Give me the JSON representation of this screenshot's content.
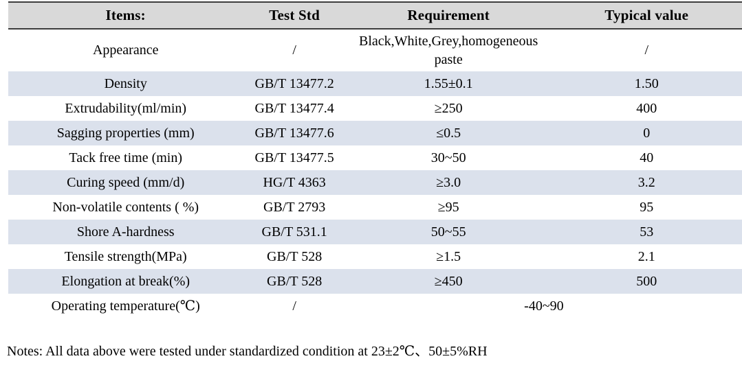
{
  "table": {
    "columns": [
      "Items:",
      "Test Std",
      "Requirement",
      "Typical value"
    ],
    "rows": [
      {
        "item": "Appearance",
        "test_std": "/",
        "requirement": "Black,White,Grey,homogeneous paste",
        "typical": "/"
      },
      {
        "item": "Density",
        "test_std": "GB/T 13477.2",
        "requirement": "1.55±0.1",
        "typical": "1.50"
      },
      {
        "item": "Extrudability(ml/min)",
        "test_std": "GB/T 13477.4",
        "requirement": "≥250",
        "typical": "400"
      },
      {
        "item": "Sagging properties (mm)",
        "test_std": "GB/T 13477.6",
        "requirement": "≤0.5",
        "typical": "0"
      },
      {
        "item": "Tack free time (min)",
        "test_std": "GB/T 13477.5",
        "requirement": "30~50",
        "typical": "40"
      },
      {
        "item": "Curing speed (mm/d)",
        "test_std": "HG/T 4363",
        "requirement": "≥3.0",
        "typical": "3.2"
      },
      {
        "item": "Non-volatile contents ( %)",
        "test_std": "GB/T 2793",
        "requirement": "≥95",
        "typical": "95"
      },
      {
        "item": "Shore A-hardness",
        "test_std": "GB/T 531.1",
        "requirement": "50~55",
        "typical": "53"
      },
      {
        "item": "Tensile strength(MPa)",
        "test_std": "GB/T 528",
        "requirement": "≥1.5",
        "typical": "2.1"
      },
      {
        "item": "Elongation at break(%)",
        "test_std": "GB/T 528",
        "requirement": "≥450",
        "typical": "500"
      },
      {
        "item": "Operating temperature(℃)",
        "test_std": "/",
        "requirement": "-40~90",
        "typical": null
      }
    ]
  },
  "notes": "Notes: All data above were tested under standardized condition at 23±2℃、50±5%RH",
  "colors": {
    "header_bg": "#d9d9d9",
    "band_bg": "#dbe1ec",
    "border": "#3c3c3c",
    "text": "#000000"
  }
}
